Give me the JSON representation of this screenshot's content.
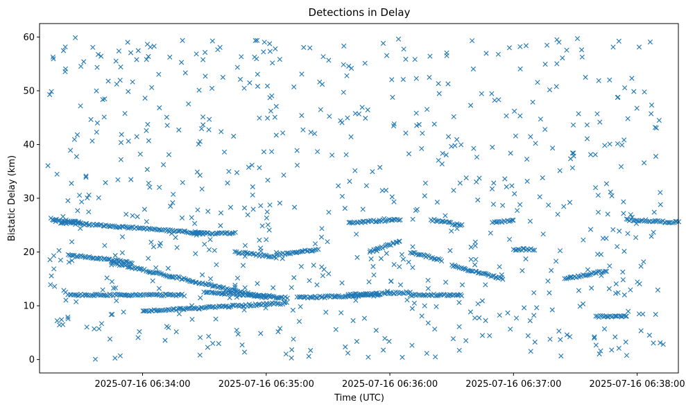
{
  "chart_data": {
    "type": "scatter",
    "title": "Detections in Delay",
    "xlabel": "Time (UTC)",
    "ylabel": "Bistatic Delay (km)",
    "marker": "x",
    "color": "#1f77b4",
    "x_unit": "UTC time",
    "x_range": [
      "2025-07-16 06:33:14",
      "2025-07-16 06:38:14"
    ],
    "xlim": [
      "2025-07-16 06:33:10",
      "2025-07-16 06:38:20"
    ],
    "ylim": [
      -2.5,
      62.5
    ],
    "xticks": [
      {
        "value": "2025-07-16 06:34:00",
        "label": "2025-07-16 06:34:00"
      },
      {
        "value": "2025-07-16 06:35:00",
        "label": "2025-07-16 06:35:00"
      },
      {
        "value": "2025-07-16 06:36:00",
        "label": "2025-07-16 06:36:00"
      },
      {
        "value": "2025-07-16 06:37:00",
        "label": "2025-07-16 06:37:00"
      },
      {
        "value": "2025-07-16 06:38:00",
        "label": "2025-07-16 06:38:00"
      }
    ],
    "yticks": [
      0,
      10,
      20,
      30,
      40,
      50,
      60
    ],
    "grid": false,
    "legend": "none",
    "tracks": [
      {
        "start": "2025-07-16 06:33:16",
        "end": "2025-07-16 06:33:30",
        "y_start": 26.0,
        "y_end": 25.5
      },
      {
        "start": "2025-07-16 06:33:20",
        "end": "2025-07-16 06:34:30",
        "y_start": 25.5,
        "y_end": 23.5
      },
      {
        "start": "2025-07-16 06:33:24",
        "end": "2025-07-16 06:33:55",
        "y_start": 19.5,
        "y_end": 18.0
      },
      {
        "start": "2025-07-16 06:33:45",
        "end": "2025-07-16 06:35:00",
        "y_start": 18.0,
        "y_end": 11.5
      },
      {
        "start": "2025-07-16 06:33:24",
        "end": "2025-07-16 06:34:20",
        "y_start": 12.0,
        "y_end": 12.0
      },
      {
        "start": "2025-07-16 06:34:30",
        "end": "2025-07-16 06:35:10",
        "y_start": 12.5,
        "y_end": 11.5
      },
      {
        "start": "2025-07-16 06:34:00",
        "end": "2025-07-16 06:35:10",
        "y_start": 9.0,
        "y_end": 10.5
      },
      {
        "start": "2025-07-16 06:34:25",
        "end": "2025-07-16 06:34:45",
        "y_start": 23.5,
        "y_end": 23.5
      },
      {
        "start": "2025-07-16 06:34:45",
        "end": "2025-07-16 06:35:05",
        "y_start": 20.0,
        "y_end": 19.0
      },
      {
        "start": "2025-07-16 06:35:05",
        "end": "2025-07-16 06:35:25",
        "y_start": 19.5,
        "y_end": 20.5
      },
      {
        "start": "2025-07-16 06:35:15",
        "end": "2025-07-16 06:35:55",
        "y_start": 11.5,
        "y_end": 12.0
      },
      {
        "start": "2025-07-16 06:35:40",
        "end": "2025-07-16 06:36:10",
        "y_start": 12.0,
        "y_end": 12.5
      },
      {
        "start": "2025-07-16 06:35:40",
        "end": "2025-07-16 06:36:05",
        "y_start": 25.5,
        "y_end": 26.0
      },
      {
        "start": "2025-07-16 06:35:50",
        "end": "2025-07-16 06:36:05",
        "y_start": 20.0,
        "y_end": 22.0
      },
      {
        "start": "2025-07-16 06:36:10",
        "end": "2025-07-16 06:36:25",
        "y_start": 20.0,
        "y_end": 18.5
      },
      {
        "start": "2025-07-16 06:36:10",
        "end": "2025-07-16 06:36:35",
        "y_start": 12.0,
        "y_end": 12.0
      },
      {
        "start": "2025-07-16 06:36:20",
        "end": "2025-07-16 06:36:35",
        "y_start": 26.0,
        "y_end": 25.0
      },
      {
        "start": "2025-07-16 06:36:30",
        "end": "2025-07-16 06:36:55",
        "y_start": 17.5,
        "y_end": 15.0
      },
      {
        "start": "2025-07-16 06:36:50",
        "end": "2025-07-16 06:37:00",
        "y_start": 25.5,
        "y_end": 25.8
      },
      {
        "start": "2025-07-16 06:37:00",
        "end": "2025-07-16 06:37:10",
        "y_start": 20.5,
        "y_end": 20.5
      },
      {
        "start": "2025-07-16 06:37:25",
        "end": "2025-07-16 06:37:45",
        "y_start": 15.0,
        "y_end": 16.5
      },
      {
        "start": "2025-07-16 06:37:40",
        "end": "2025-07-16 06:37:55",
        "y_start": 8.0,
        "y_end": 8.0
      },
      {
        "start": "2025-07-16 06:37:55",
        "end": "2025-07-16 06:38:20",
        "y_start": 26.0,
        "y_end": 25.5
      }
    ],
    "clutter": {
      "count": 700,
      "y_range": [
        0,
        60
      ]
    }
  }
}
